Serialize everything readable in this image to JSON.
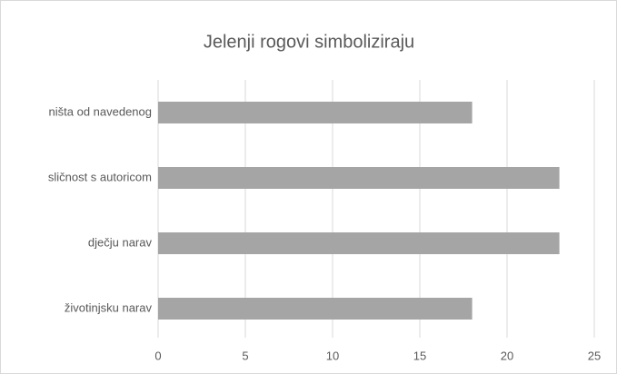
{
  "chart_data": {
    "type": "hbar",
    "title": "Jelenji rogovi simboliziraju",
    "categories": [
      "ništa od navedenog",
      "sličnost s autoricom",
      "dječju narav",
      "životinjsku narav"
    ],
    "values": [
      18,
      23,
      23,
      18
    ],
    "color": "#a5a5a5",
    "xlim": [
      0,
      25
    ],
    "xticks": [
      0,
      5,
      10,
      15,
      20,
      25
    ],
    "grid": true
  }
}
